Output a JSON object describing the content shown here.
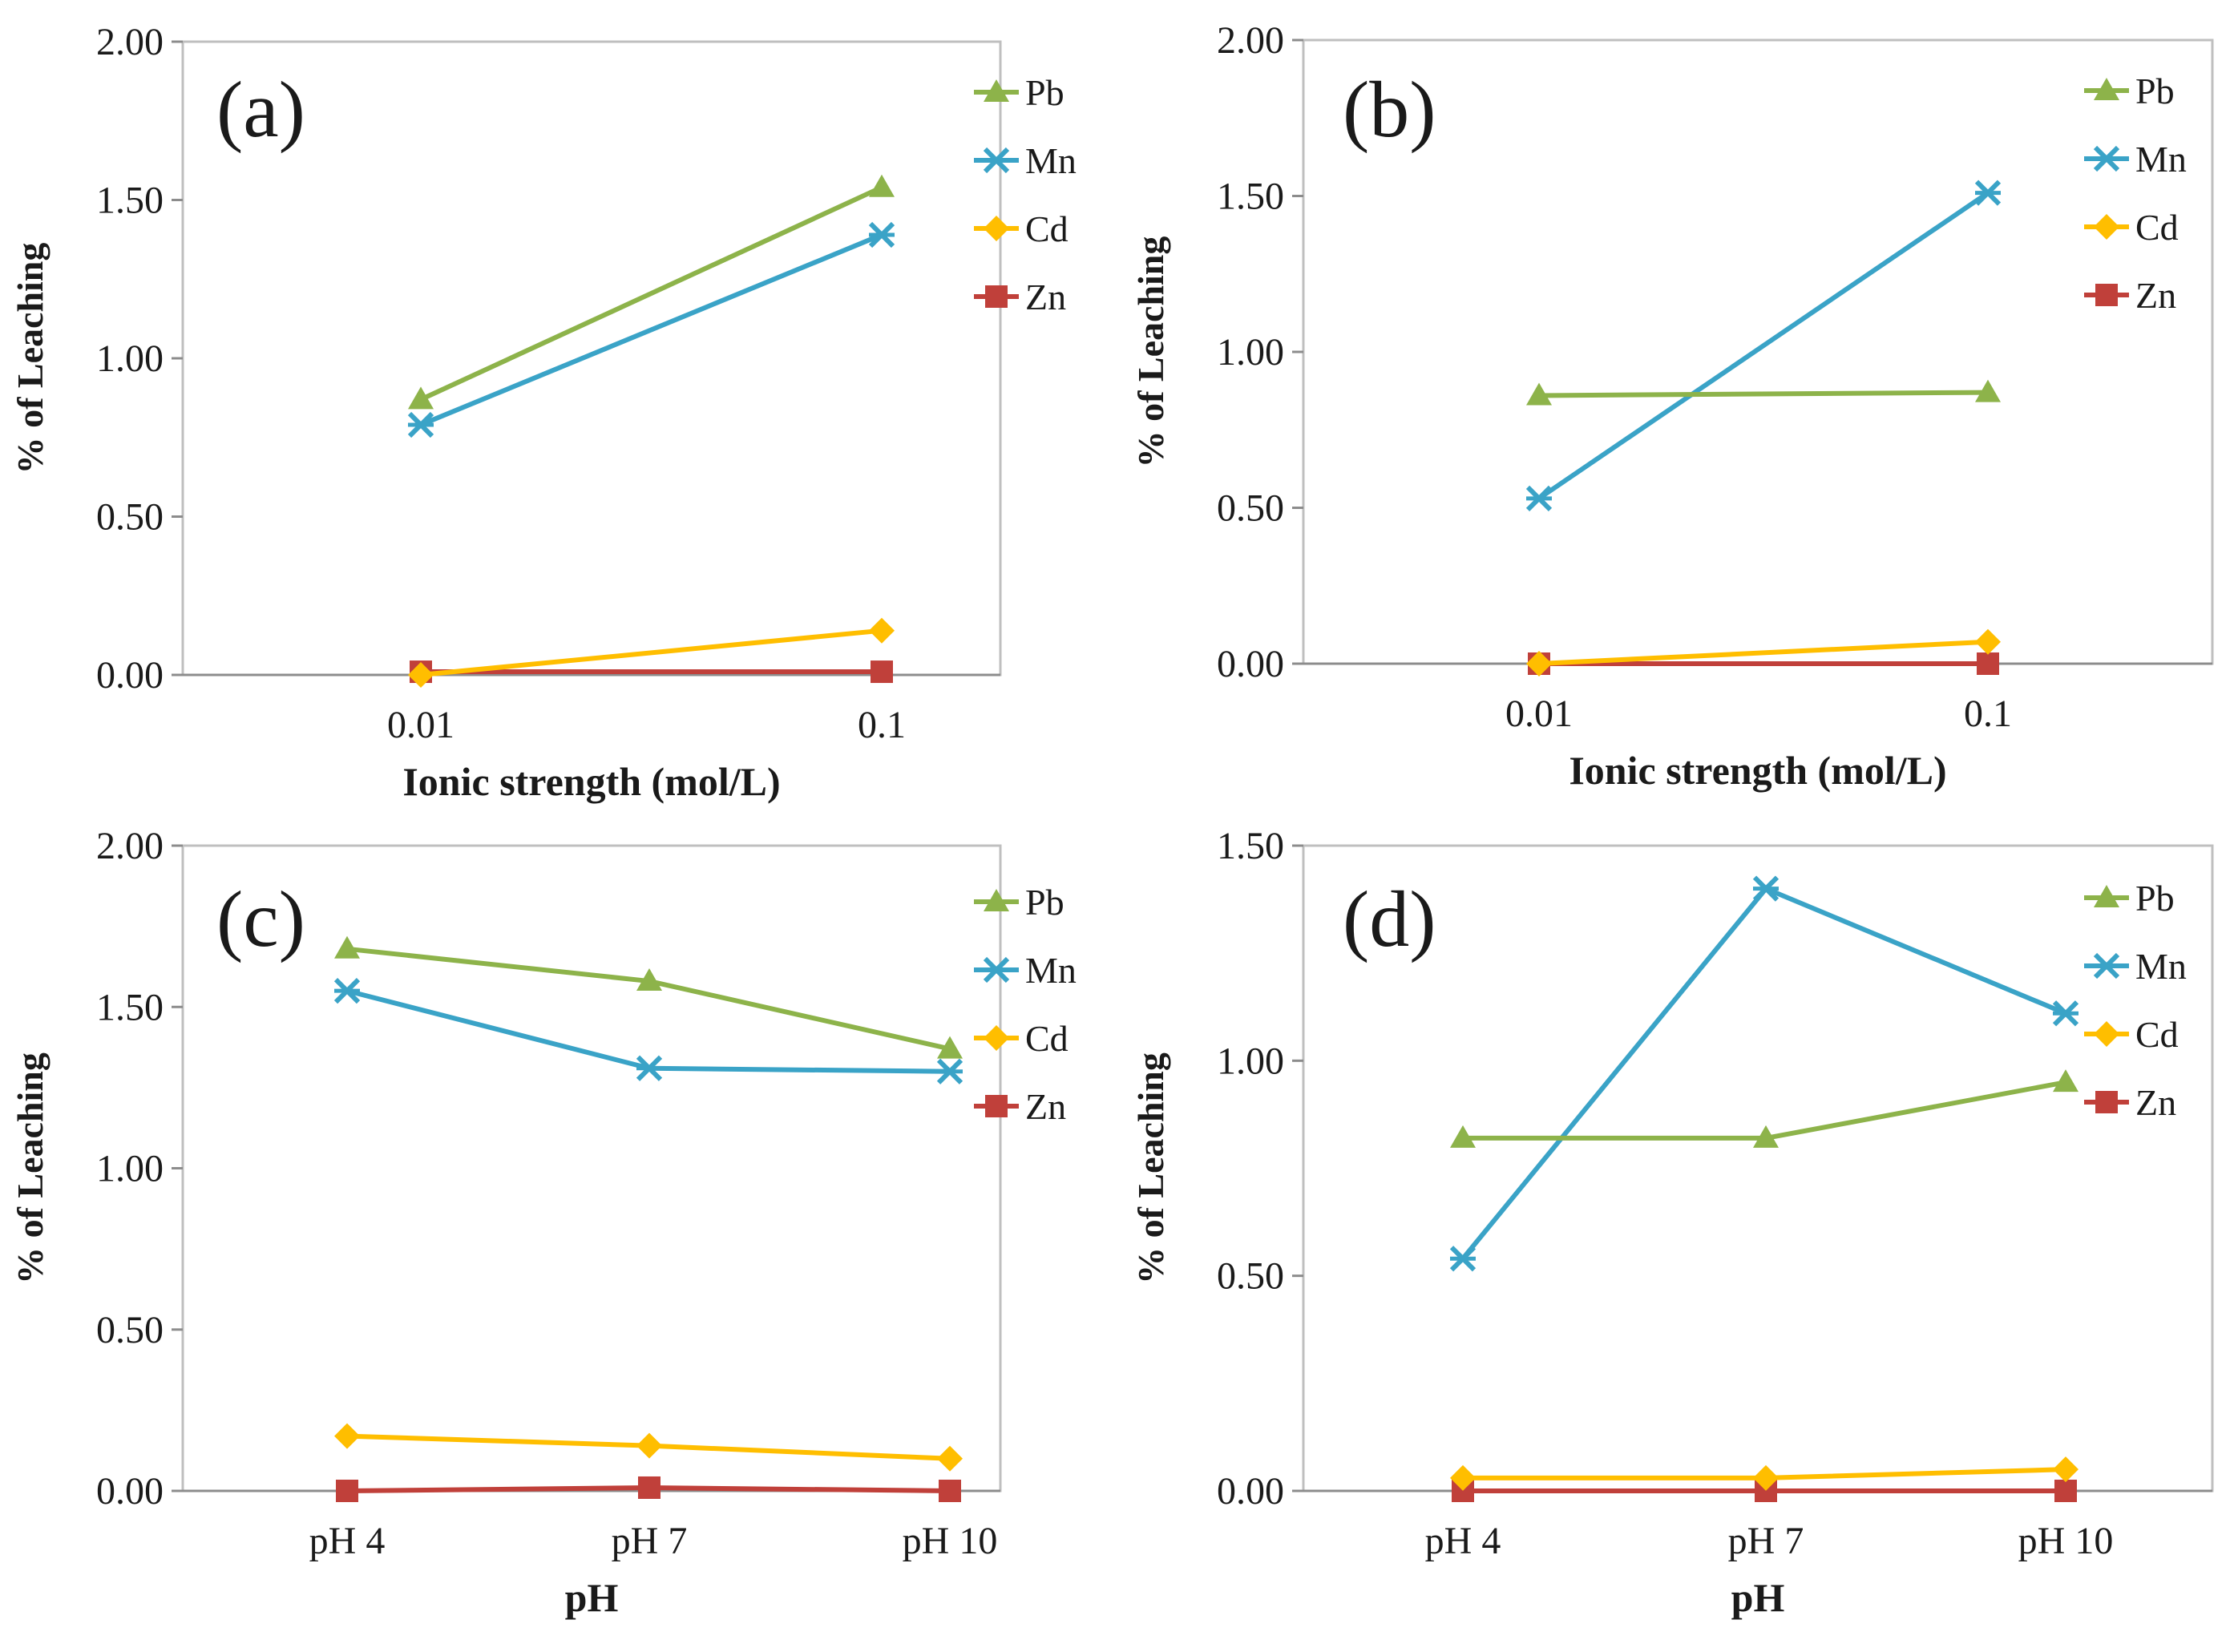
{
  "chart_data": [
    {
      "panel": "(a)",
      "type": "line",
      "categories": [
        "0.01",
        "0.1"
      ],
      "xlabel": "Ionic strength (mol/L)",
      "ylabel": "% of  Leaching",
      "ylim": [
        0,
        2.0
      ],
      "yticks": [
        "0.00",
        "0.50",
        "1.00",
        "1.50",
        "2.00"
      ],
      "series": [
        {
          "name": "Pb",
          "color": "#8db34a",
          "marker": "triangle",
          "values": [
            0.87,
            1.54
          ]
        },
        {
          "name": "Mn",
          "color": "#3aa3c7",
          "marker": "star",
          "values": [
            0.79,
            1.39
          ]
        },
        {
          "name": "Cd",
          "color": "#ffbe00",
          "marker": "diamond",
          "values": [
            0.0,
            0.14
          ]
        },
        {
          "name": "Zn",
          "color": "#c0403a",
          "marker": "square",
          "values": [
            0.01,
            0.01
          ]
        }
      ]
    },
    {
      "panel": "(b)",
      "type": "line",
      "categories": [
        "0.01",
        "0.1"
      ],
      "xlabel": "Ionic strength (mol/L)",
      "ylabel": "% of  Leaching",
      "ylim": [
        0,
        2.0
      ],
      "yticks": [
        "0.00",
        "0.50",
        "1.00",
        "1.50",
        "2.00"
      ],
      "series": [
        {
          "name": "Pb",
          "color": "#8db34a",
          "marker": "triangle",
          "values": [
            0.86,
            0.87
          ]
        },
        {
          "name": "Mn",
          "color": "#3aa3c7",
          "marker": "star",
          "values": [
            0.53,
            1.51
          ]
        },
        {
          "name": "Cd",
          "color": "#ffbe00",
          "marker": "diamond",
          "values": [
            0.0,
            0.07
          ]
        },
        {
          "name": "Zn",
          "color": "#c0403a",
          "marker": "square",
          "values": [
            0.0,
            0.0
          ]
        }
      ]
    },
    {
      "panel": "(c)",
      "type": "line",
      "categories": [
        "pH 4",
        "pH 7",
        "pH 10"
      ],
      "xlabel": "pH",
      "ylabel": "% of  Leaching",
      "ylim": [
        0,
        2.0
      ],
      "yticks": [
        "0.00",
        "0.50",
        "1.00",
        "1.50",
        "2.00"
      ],
      "series": [
        {
          "name": "Pb",
          "color": "#8db34a",
          "marker": "triangle",
          "values": [
            1.68,
            1.58,
            1.37
          ]
        },
        {
          "name": "Mn",
          "color": "#3aa3c7",
          "marker": "star",
          "values": [
            1.55,
            1.31,
            1.3
          ]
        },
        {
          "name": "Cd",
          "color": "#ffbe00",
          "marker": "diamond",
          "values": [
            0.17,
            0.14,
            0.1
          ]
        },
        {
          "name": "Zn",
          "color": "#c0403a",
          "marker": "square",
          "values": [
            0.0,
            0.01,
            0.0
          ]
        }
      ]
    },
    {
      "panel": "(d)",
      "type": "line",
      "categories": [
        "pH 4",
        "pH 7",
        "pH 10"
      ],
      "xlabel": "pH",
      "ylabel": "% of  Leaching",
      "ylim": [
        0,
        1.5
      ],
      "yticks": [
        "0.00",
        "0.50",
        "1.00",
        "1.50"
      ],
      "series": [
        {
          "name": "Pb",
          "color": "#8db34a",
          "marker": "triangle",
          "values": [
            0.82,
            0.82,
            0.95
          ]
        },
        {
          "name": "Mn",
          "color": "#3aa3c7",
          "marker": "star",
          "values": [
            0.54,
            1.4,
            1.11
          ]
        },
        {
          "name": "Cd",
          "color": "#ffbe00",
          "marker": "diamond",
          "values": [
            0.03,
            0.03,
            0.05
          ]
        },
        {
          "name": "Zn",
          "color": "#c0403a",
          "marker": "square",
          "values": [
            0.0,
            0.0,
            0.0
          ]
        }
      ]
    }
  ]
}
